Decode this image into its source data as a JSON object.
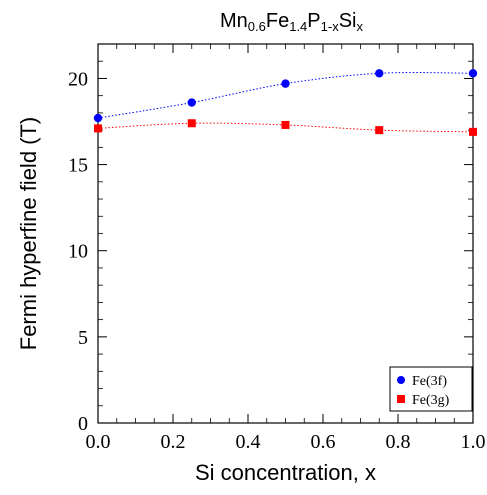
{
  "chart_data": {
    "type": "scatter",
    "title": {
      "parts": [
        {
          "text": "Mn",
          "sub": false
        },
        {
          "text": "0.6",
          "sub": true
        },
        {
          "text": "Fe",
          "sub": false
        },
        {
          "text": "1.4",
          "sub": true
        },
        {
          "text": "P",
          "sub": false
        },
        {
          "text": "1-x",
          "sub": true
        },
        {
          "text": "Si",
          "sub": false
        },
        {
          "text": "x",
          "sub": true
        }
      ]
    },
    "xlabel": "Si concentration, x",
    "ylabel": "Fermi hyperfine field (T)",
    "xlim": [
      0.0,
      1.0
    ],
    "ylim": [
      0,
      22
    ],
    "xticks": [
      0.0,
      0.2,
      0.4,
      0.6,
      0.8,
      1.0
    ],
    "xtick_labels": [
      "0.0",
      "0.2",
      "0.4",
      "0.6",
      "0.8",
      "1.0"
    ],
    "yticks": [
      0,
      5,
      10,
      15,
      20
    ],
    "ytick_labels": [
      "0",
      "5",
      "10",
      "15",
      "20"
    ],
    "grid": false,
    "legend_position": "bottom-right",
    "series": [
      {
        "name": "Fe(3f)",
        "color": "#0000ff",
        "marker": "circle",
        "line": "dotted",
        "x": [
          0.0,
          0.25,
          0.5,
          0.75,
          1.0
        ],
        "y": [
          17.7,
          18.6,
          19.7,
          20.3,
          20.3
        ]
      },
      {
        "name": "Fe(3g)",
        "color": "#ff0000",
        "marker": "square",
        "line": "dotted",
        "x": [
          0.0,
          0.25,
          0.5,
          0.75,
          1.0
        ],
        "y": [
          17.1,
          17.4,
          17.3,
          17.0,
          16.9
        ]
      }
    ]
  }
}
